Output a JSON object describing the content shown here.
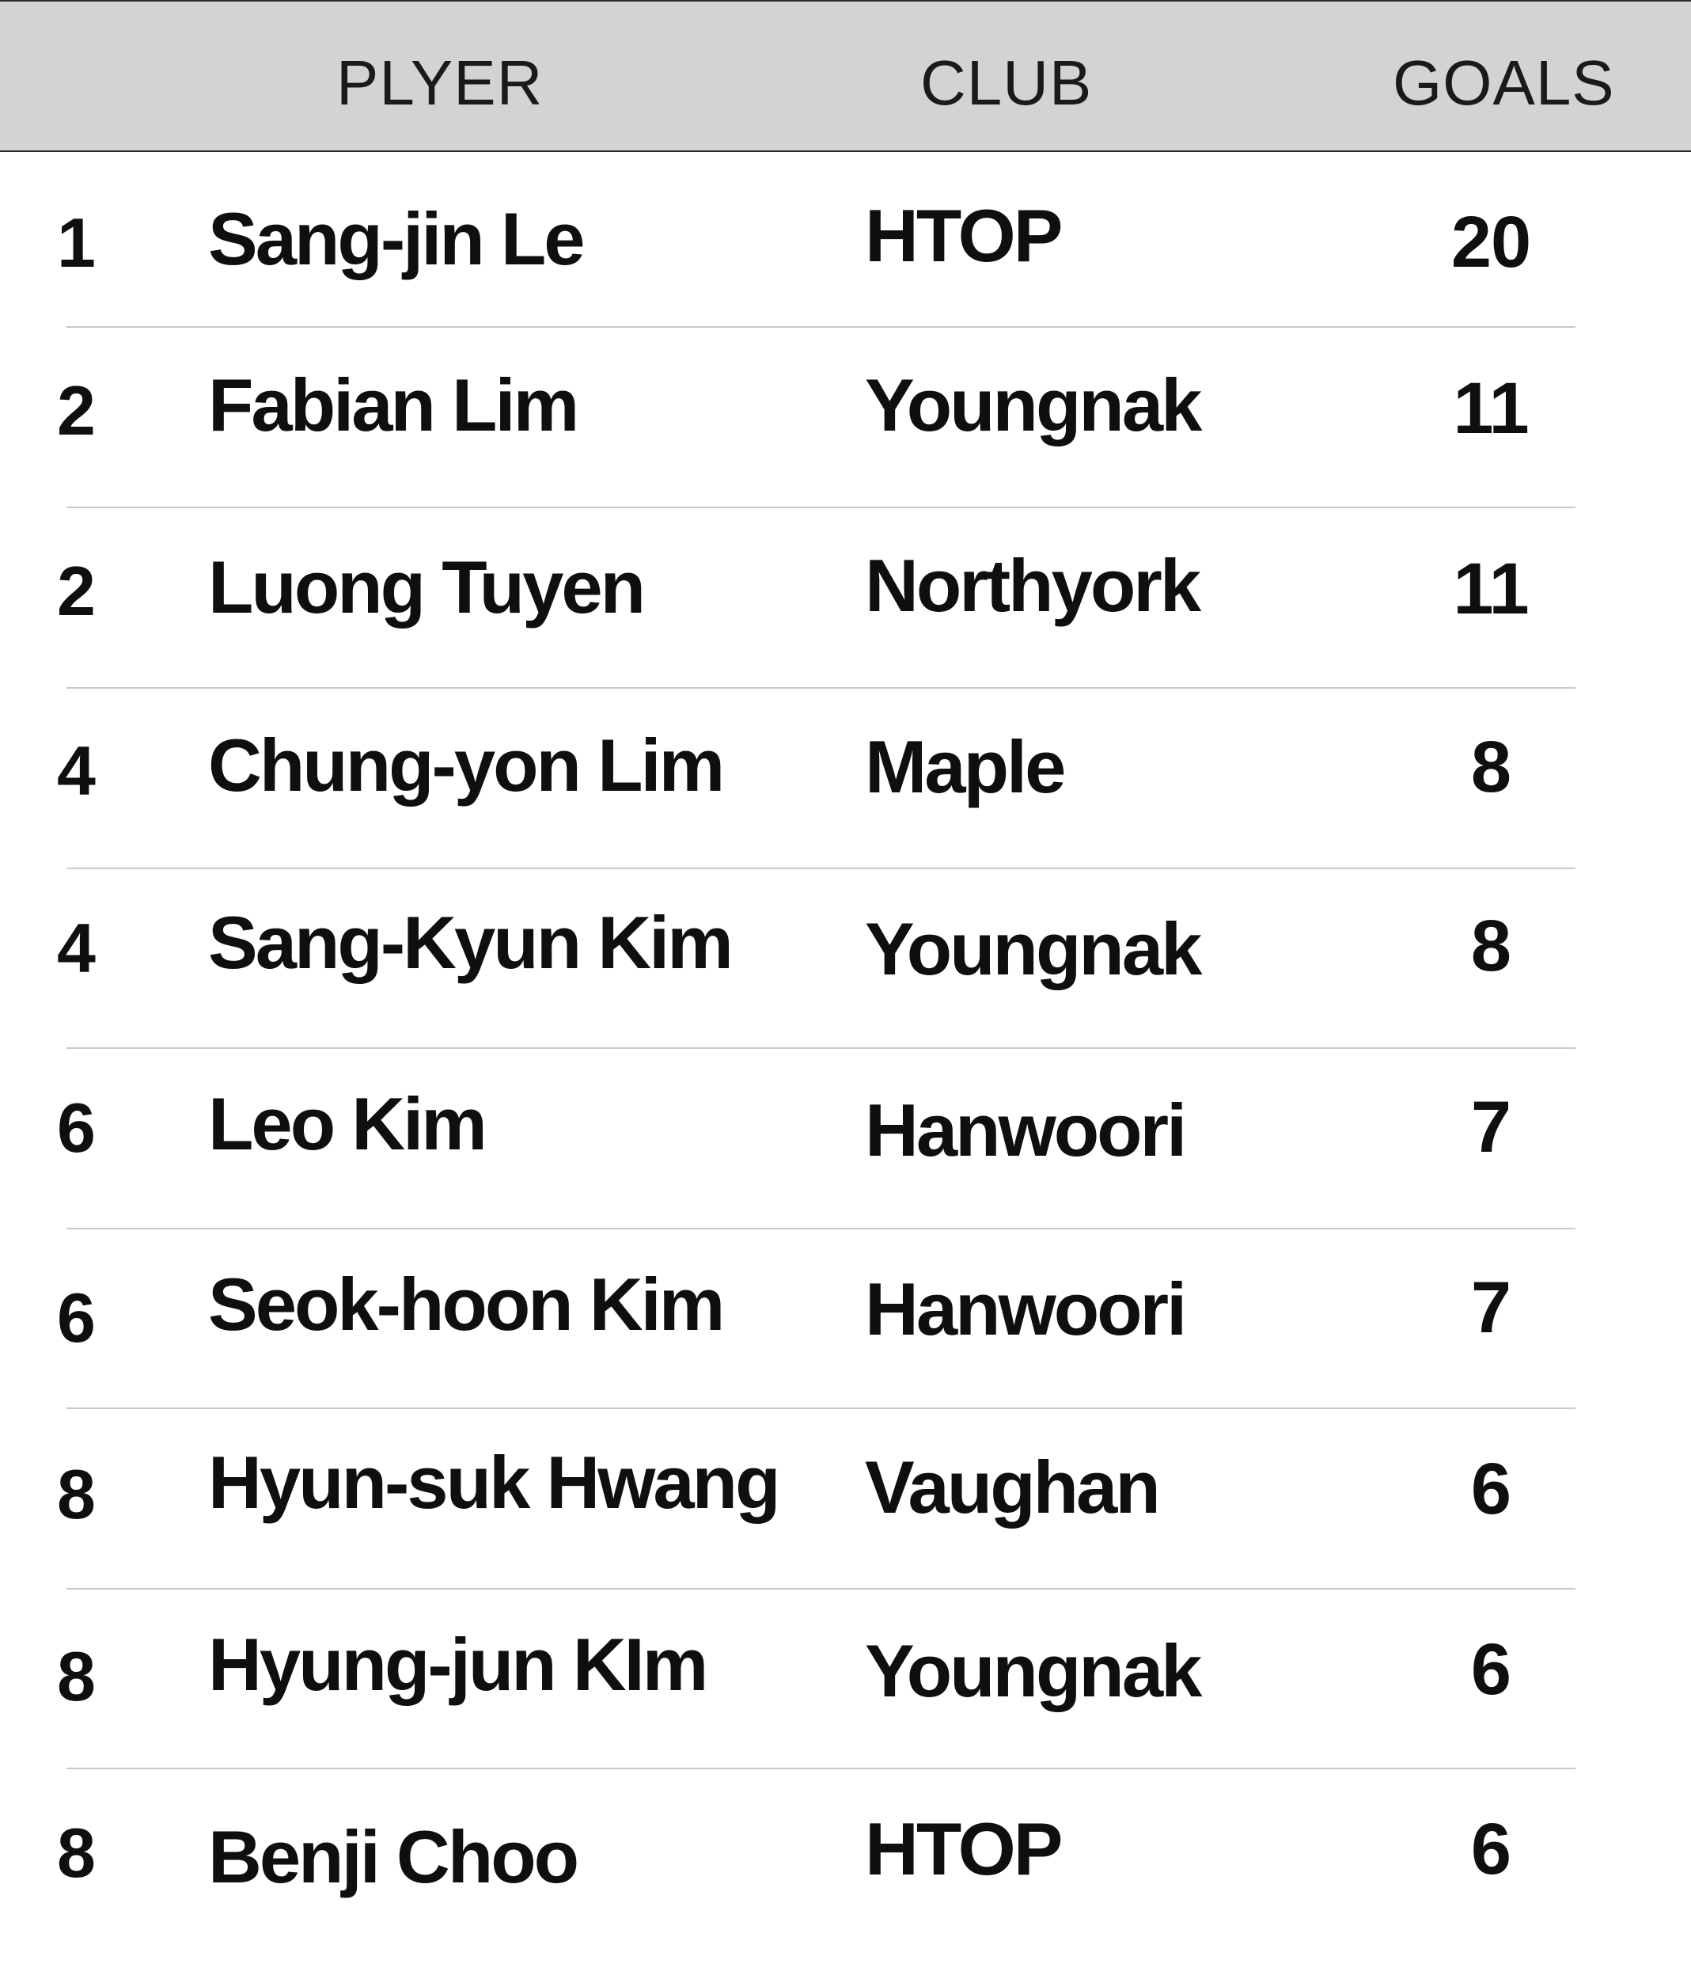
{
  "table": {
    "headers": {
      "rank": "",
      "player": "PLYER",
      "club": "CLUB",
      "goals": "GOALS"
    },
    "rows": [
      {
        "rank": "1",
        "player": "Sang-jin Le",
        "club": "HTOP",
        "goals": "20"
      },
      {
        "rank": "2",
        "player": "Fabian Lim",
        "club": "Youngnak",
        "goals": "11"
      },
      {
        "rank": "2",
        "player": "Luong Tuyen",
        "club": "Northyork",
        "goals": "11"
      },
      {
        "rank": "4",
        "player": "Chung-yon Lim",
        "club": "Maple",
        "goals": "8"
      },
      {
        "rank": "4",
        "player": "Sang-Kyun Kim",
        "club": "Youngnak",
        "goals": "8"
      },
      {
        "rank": "6",
        "player": "Leo Kim",
        "club": "Hanwoori",
        "goals": "7"
      },
      {
        "rank": "6",
        "player": "Seok-hoon Kim",
        "club": "Hanwoori",
        "goals": "7"
      },
      {
        "rank": "8",
        "player": "Hyun-suk Hwang",
        "club": "Vaughan",
        "goals": "6"
      },
      {
        "rank": "8",
        "player": "Hyung-jun KIm",
        "club": "Youngnak",
        "goals": "6"
      },
      {
        "rank": "8",
        "player": "Benji Choo",
        "club": "HTOP",
        "goals": "6"
      }
    ]
  },
  "colors": {
    "header_background": "#d2d3d5",
    "divider": "#c8c8c8",
    "text": "#111111"
  }
}
